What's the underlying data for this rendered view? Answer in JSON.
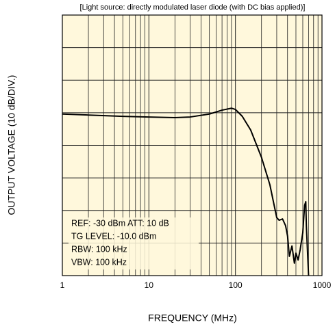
{
  "chart_data": {
    "type": "line",
    "title": "[Light source: directly modulated laser diode (with DC bias applied)]",
    "x_label": "FREQUENCY (MHz)",
    "y_label": "OUTPUT VOLTAGE (10 dB/DIV.)",
    "annotations": [
      "REF: -30 dBm ATT: 10 dB",
      "TG LEVEL: -10.0 dBm",
      "RBW: 100 kHz",
      "VBW: 100 kHz"
    ],
    "x": [
      1,
      2,
      5,
      10,
      20,
      30,
      50,
      70,
      90,
      100,
      120,
      150,
      200,
      250,
      280,
      300,
      320,
      350,
      380,
      400,
      420,
      450,
      480,
      500,
      530,
      560,
      600,
      630,
      650,
      660,
      700
    ],
    "series": [
      {
        "name": "response",
        "color": "#000000",
        "values": [
          -60.4,
          -60.7,
          -61.1,
          -61.3,
          -61.5,
          -61.3,
          -60.4,
          -59.2,
          -58.6,
          -59.0,
          -61.1,
          -65.3,
          -73.7,
          -82.1,
          -88.4,
          -92.2,
          -93.0,
          -92.6,
          -94.7,
          -97.8,
          -104.1,
          -100.9,
          -106.2,
          -103.1,
          -105.2,
          -102.0,
          -96.8,
          -88.4,
          -87.3,
          -94.7,
          -110
        ]
      }
    ],
    "xscale": "log",
    "xlim": [
      1,
      1000
    ],
    "xticks": [
      1,
      10,
      100,
      1000
    ],
    "xminorticks": [
      2,
      3,
      4,
      5,
      6,
      7,
      8,
      9,
      20,
      30,
      40,
      50,
      60,
      70,
      80,
      90,
      200,
      300,
      400,
      500,
      600,
      700,
      800,
      900
    ],
    "ylim": [
      -110,
      -30
    ],
    "yticks": [
      -110,
      -100,
      -90,
      -80,
      -70,
      -60,
      -50,
      -40,
      -30
    ],
    "grid": true,
    "background": "#fff8dc"
  }
}
